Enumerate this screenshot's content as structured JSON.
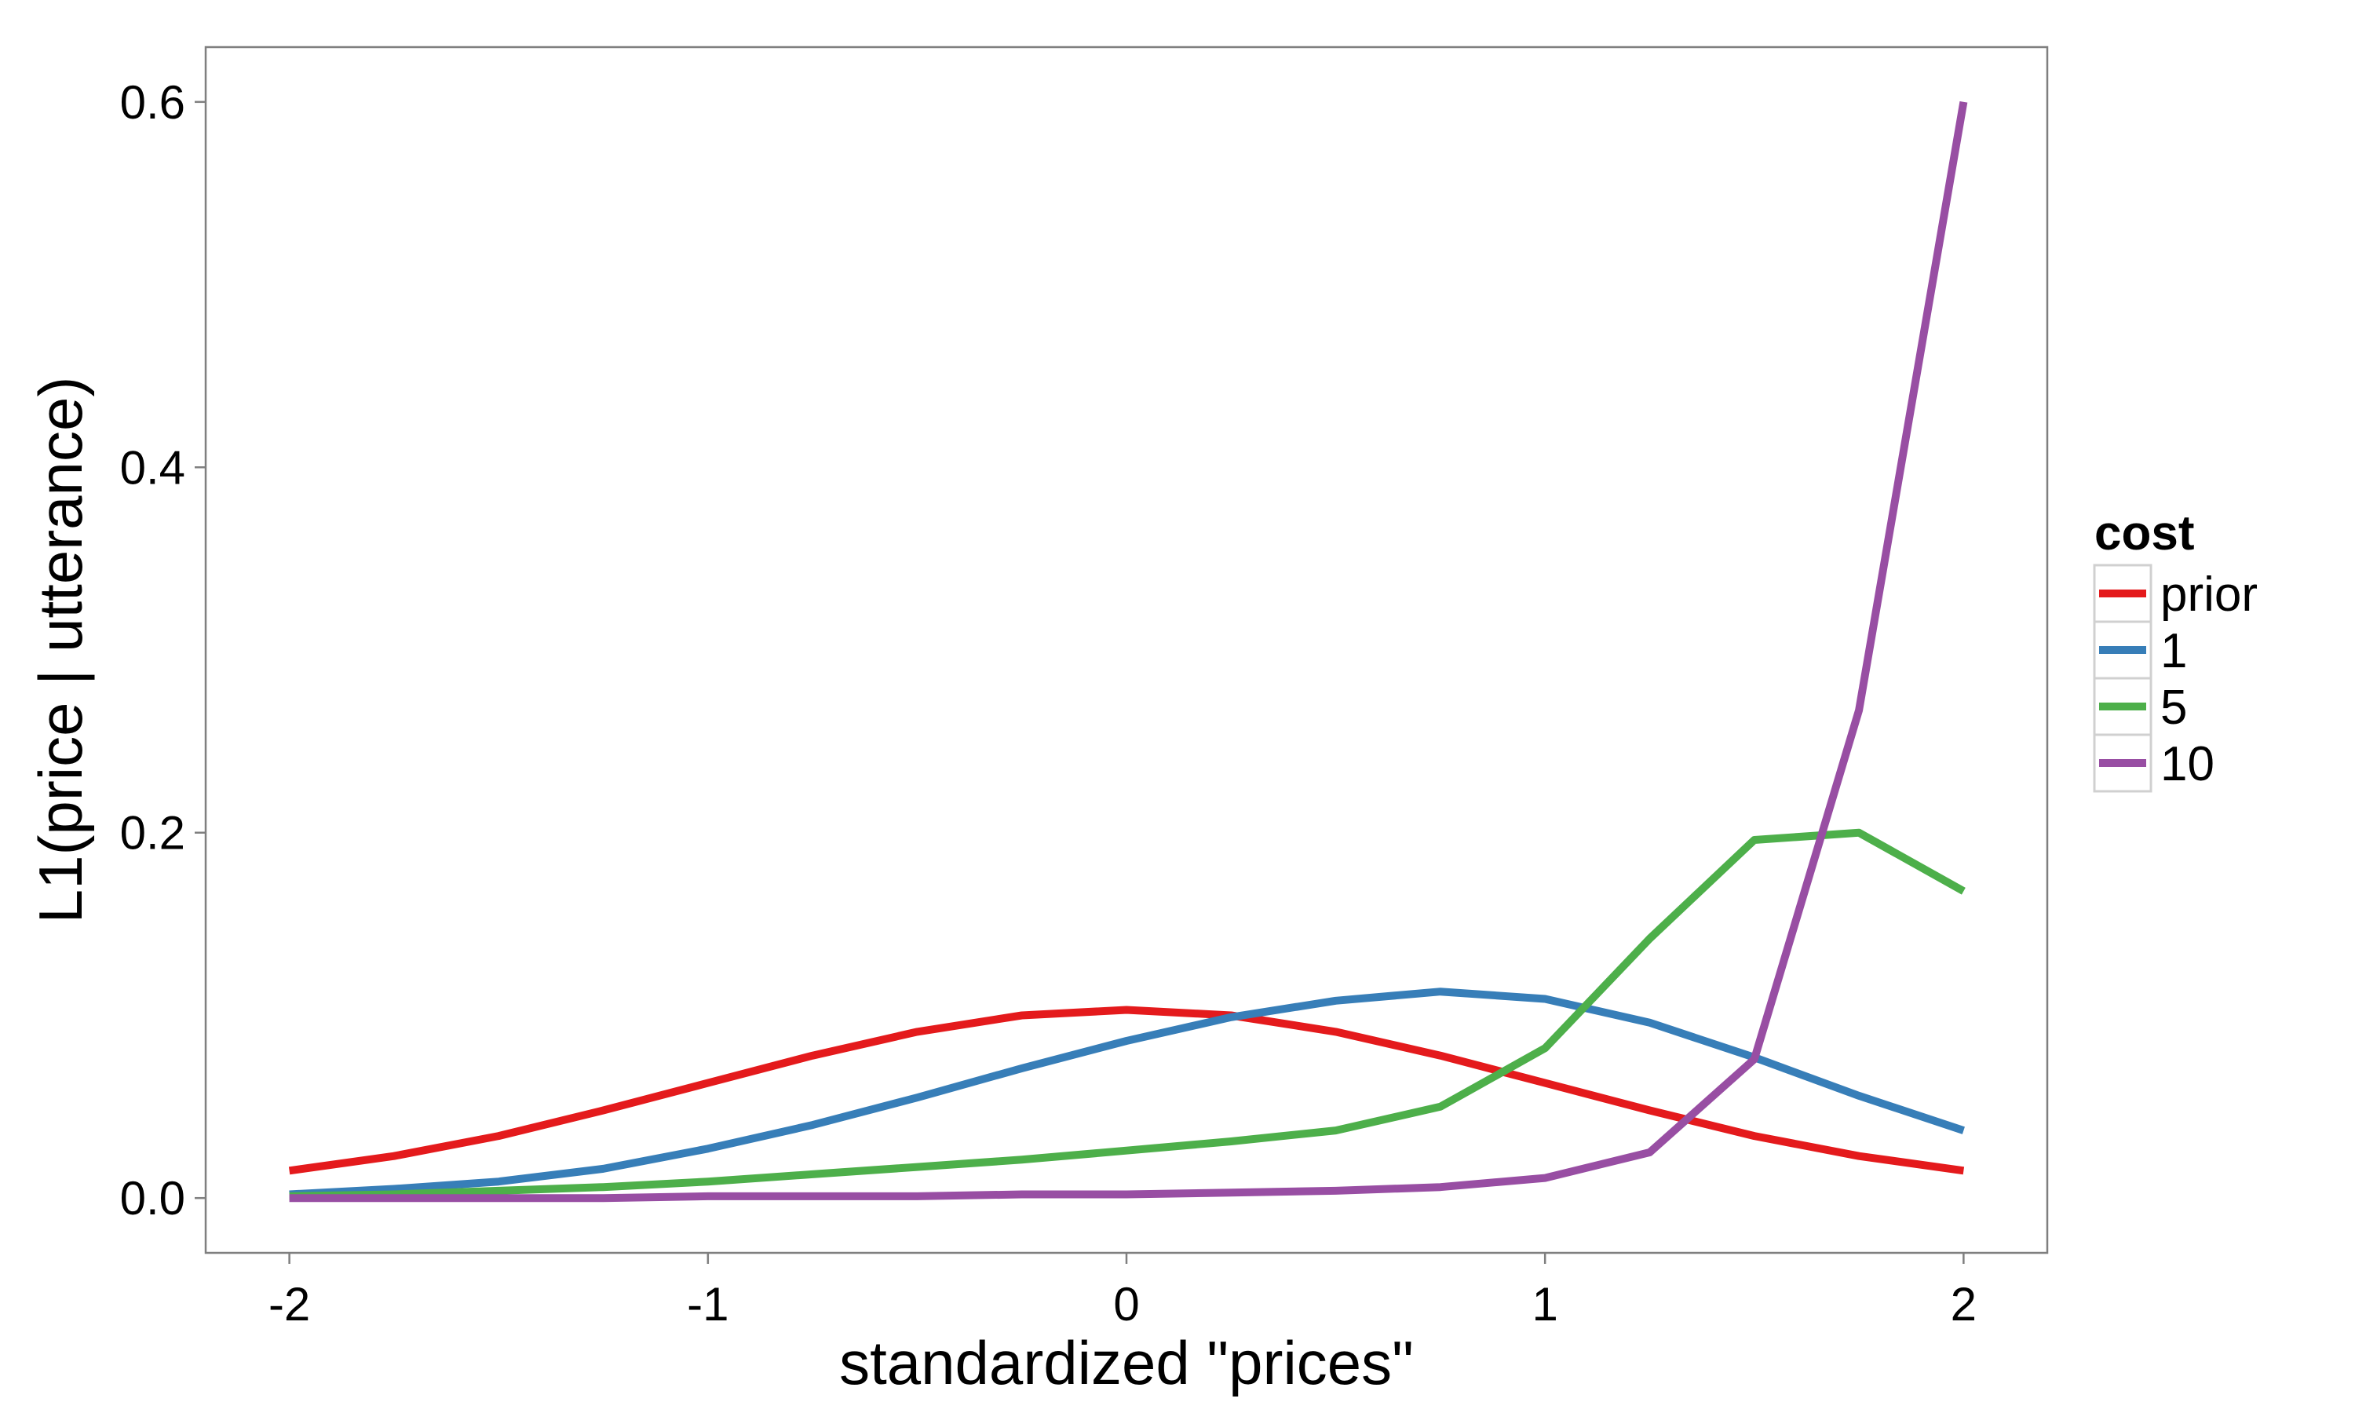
{
  "chart_data": {
    "type": "line",
    "title": "",
    "xlabel": "standardized \"prices\"",
    "ylabel": "L1(price | utterance)",
    "xlim": [
      -2.2,
      2.2
    ],
    "ylim": [
      -0.03,
      0.63
    ],
    "x_ticks": [
      -2,
      -1,
      0,
      1,
      2
    ],
    "x_tick_labels": [
      "-2",
      "-1",
      "0",
      "1",
      "2"
    ],
    "y_ticks": [
      0.0,
      0.2,
      0.4,
      0.6
    ],
    "y_tick_labels": [
      "0.0",
      "0.2",
      "0.4",
      "0.6"
    ],
    "grid": false,
    "legend": {
      "title": "cost",
      "position": "right"
    },
    "x": [
      -2,
      -1.75,
      -1.5,
      -1.25,
      -1,
      -0.75,
      -0.5,
      -0.25,
      0,
      0.25,
      0.5,
      0.75,
      1,
      1.25,
      1.5,
      1.75,
      2
    ],
    "series": [
      {
        "name": "prior",
        "color": "#e41a1c",
        "values": [
          0.015,
          0.023,
          0.034,
          0.048,
          0.063,
          0.078,
          0.091,
          0.1,
          0.103,
          0.1,
          0.091,
          0.078,
          0.063,
          0.048,
          0.034,
          0.023,
          0.015
        ]
      },
      {
        "name": "1",
        "color": "#377eb8",
        "values": [
          0.002,
          0.005,
          0.009,
          0.016,
          0.027,
          0.04,
          0.055,
          0.071,
          0.086,
          0.099,
          0.108,
          0.113,
          0.109,
          0.096,
          0.077,
          0.056,
          0.037
        ]
      },
      {
        "name": "5",
        "color": "#4daf4a",
        "values": [
          0.001,
          0.002,
          0.004,
          0.006,
          0.009,
          0.013,
          0.017,
          0.021,
          0.026,
          0.031,
          0.037,
          0.05,
          0.082,
          0.142,
          0.196,
          0.2,
          0.168
        ]
      },
      {
        "name": "10",
        "color": "#984ea3",
        "values": [
          0.0,
          0.0,
          0.0,
          0.0,
          0.001,
          0.001,
          0.001,
          0.002,
          0.002,
          0.003,
          0.004,
          0.006,
          0.011,
          0.025,
          0.076,
          0.267,
          0.6
        ]
      }
    ]
  }
}
